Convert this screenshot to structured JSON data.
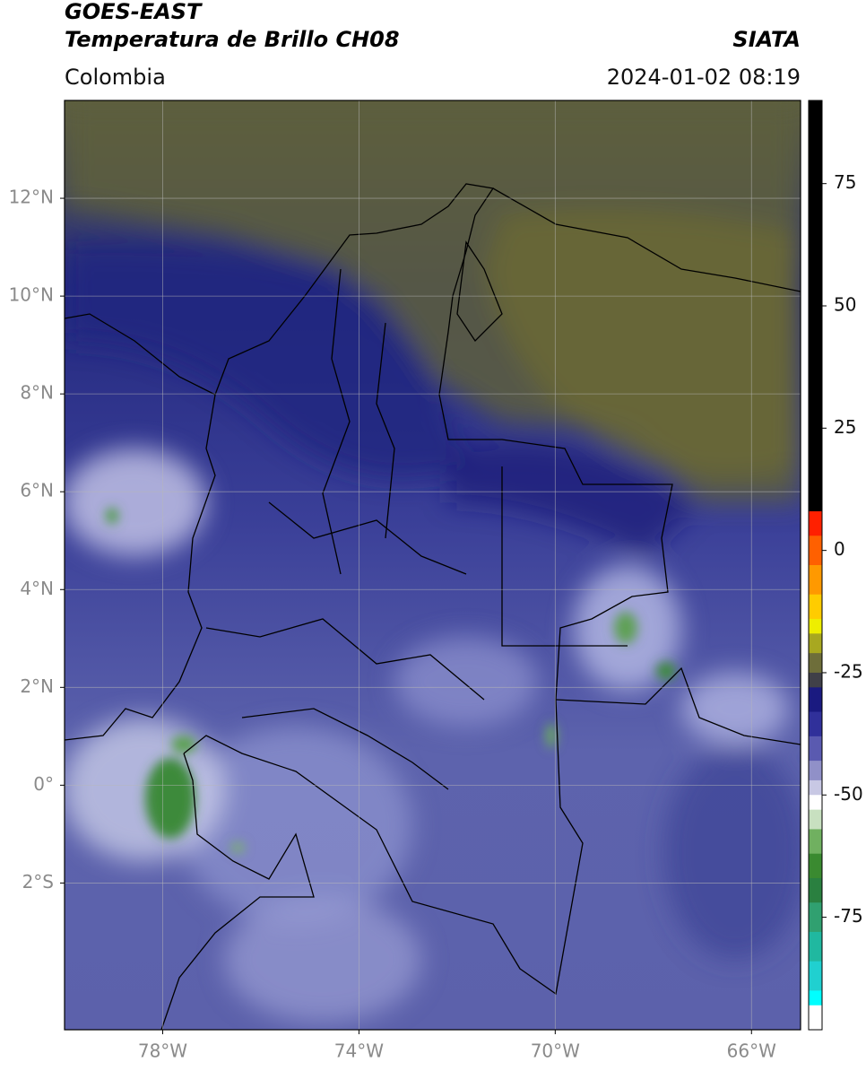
{
  "chart_data": {
    "type": "map",
    "title": "GOES-EAST",
    "subtitle": "Temperatura de Brillo CH08",
    "source": "SIATA",
    "region": "Colombia",
    "timestamp": "2024-01-02 08:19",
    "xlim": [
      -80,
      -65
    ],
    "ylim": [
      -5,
      14
    ],
    "xticks": [
      {
        "value": -78,
        "label": "78°W"
      },
      {
        "value": -74,
        "label": "74°W"
      },
      {
        "value": -70,
        "label": "70°W"
      },
      {
        "value": -66,
        "label": "66°W"
      }
    ],
    "yticks": [
      {
        "value": 12,
        "label": "12°N"
      },
      {
        "value": 10,
        "label": "10°N"
      },
      {
        "value": 8,
        "label": "8°N"
      },
      {
        "value": 6,
        "label": "6°N"
      },
      {
        "value": 4,
        "label": "4°N"
      },
      {
        "value": 2,
        "label": "2°N"
      },
      {
        "value": 0,
        "label": "0°"
      },
      {
        "value": -2,
        "label": "2°S"
      }
    ],
    "grid": true,
    "colorbar": {
      "lim": [
        -98,
        92
      ],
      "ticks": [
        75,
        50,
        25,
        0,
        -25,
        -50,
        -75
      ],
      "colors": [
        {
          "value": 92,
          "color": "#000000"
        },
        {
          "value": 8,
          "color": "#ff2000"
        },
        {
          "value": 3,
          "color": "#ff6000"
        },
        {
          "value": -3,
          "color": "#ff9900"
        },
        {
          "value": -9,
          "color": "#ffcc00"
        },
        {
          "value": -14,
          "color": "#eeee00"
        },
        {
          "value": -17,
          "color": "#a8a820"
        },
        {
          "value": -21,
          "color": "#6e6e3a"
        },
        {
          "value": -25,
          "color": "#404048"
        },
        {
          "value": -28,
          "color": "#1a1a80"
        },
        {
          "value": -33,
          "color": "#30309a"
        },
        {
          "value": -38,
          "color": "#5a5ab0"
        },
        {
          "value": -43,
          "color": "#9090c8"
        },
        {
          "value": -47,
          "color": "#c8c8e4"
        },
        {
          "value": -50,
          "color": "#ffffff"
        },
        {
          "value": -53,
          "color": "#c8e0c0"
        },
        {
          "value": -57,
          "color": "#70b060"
        },
        {
          "value": -62,
          "color": "#3a8a30"
        },
        {
          "value": -67,
          "color": "#2a8040"
        },
        {
          "value": -72,
          "color": "#30a070"
        },
        {
          "value": -78,
          "color": "#20b8a0"
        },
        {
          "value": -84,
          "color": "#20d0d0"
        },
        {
          "value": -90,
          "color": "#00ffff"
        },
        {
          "value": -93,
          "color": "#ffffff"
        }
      ]
    }
  }
}
